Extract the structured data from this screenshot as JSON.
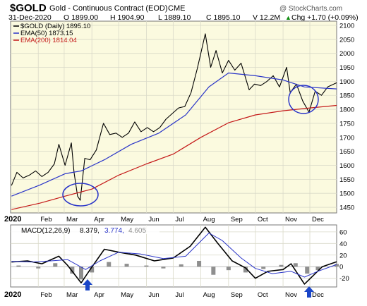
{
  "chart_title": {
    "symbol": "$GOLD",
    "name": "Gold - Continuous Contract (EOD)",
    "exchange": "CME",
    "watermark": "@ StockCharts.com"
  },
  "quote_line": {
    "date": "31-Dec-2020",
    "open": "O 1899.00",
    "high": "H 1904.90",
    "low": "L 1889.10",
    "close": "C 1895.10",
    "volume": "V 12.2M",
    "change": "Chg +1.70 (+0.09%)",
    "change_arrow": "▲"
  },
  "price_legend": {
    "main": "$GOLD (Daily) 1895.10",
    "ema50": "EMA(50) 1873.15",
    "ema200": "EMA(200) 1814.04"
  },
  "macd_legend": {
    "label": "MACD(12,26,9)",
    "macd_value": "8.379,",
    "signal_value": "3.774,",
    "hist_value": "4.605"
  },
  "year_label_top": "2020",
  "year_label_bottom": "2020",
  "colors": {
    "price_bg": "#fbfadf",
    "grid": "#d9d9c8",
    "ema50": "#2a35c8",
    "ema200": "#c41818",
    "macd_line": "#000000",
    "signal_line": "#2a35c8",
    "hist": "#8f8f8f",
    "circle": "#2a35c8",
    "arrow": "#1b46c8"
  },
  "chart_data": [
    {
      "type": "line",
      "title": "$GOLD (Daily)",
      "x_ticks": [
        "Feb",
        "Mar",
        "Apr",
        "May",
        "Jun",
        "Jul",
        "Aug",
        "Sep",
        "Oct",
        "Nov",
        "Dec"
      ],
      "y_ticks": [
        1450,
        1500,
        1550,
        1600,
        1650,
        1700,
        1750,
        1800,
        1850,
        1900,
        1950,
        2000,
        2050,
        2100
      ],
      "ylim": [
        1430,
        2115
      ],
      "grid": true,
      "series": [
        {
          "name": "$GOLD (Daily)",
          "x": [
            "2020-01-02",
            "2020-01-08",
            "2020-01-15",
            "2020-01-22",
            "2020-01-29",
            "2020-02-05",
            "2020-02-12",
            "2020-02-19",
            "2020-02-24",
            "2020-03-02",
            "2020-03-09",
            "2020-03-12",
            "2020-03-16",
            "2020-03-19",
            "2020-03-24",
            "2020-03-30",
            "2020-04-06",
            "2020-04-14",
            "2020-04-21",
            "2020-04-28",
            "2020-05-05",
            "2020-05-12",
            "2020-05-19",
            "2020-05-26",
            "2020-06-02",
            "2020-06-09",
            "2020-06-16",
            "2020-06-23",
            "2020-06-30",
            "2020-07-07",
            "2020-07-14",
            "2020-07-21",
            "2020-07-28",
            "2020-08-06",
            "2020-08-12",
            "2020-08-18",
            "2020-08-25",
            "2020-09-01",
            "2020-09-08",
            "2020-09-15",
            "2020-09-24",
            "2020-09-30",
            "2020-10-07",
            "2020-10-14",
            "2020-10-21",
            "2020-10-28",
            "2020-11-05",
            "2020-11-09",
            "2020-11-16",
            "2020-11-23",
            "2020-11-30",
            "2020-12-07",
            "2020-12-14",
            "2020-12-21",
            "2020-12-31"
          ],
          "values": [
            1528,
            1575,
            1555,
            1565,
            1580,
            1560,
            1575,
            1605,
            1675,
            1600,
            1680,
            1575,
            1490,
            1475,
            1625,
            1620,
            1655,
            1750,
            1710,
            1715,
            1700,
            1715,
            1755,
            1720,
            1735,
            1720,
            1735,
            1765,
            1785,
            1805,
            1810,
            1860,
            1945,
            2070,
            1950,
            2010,
            1930,
            1975,
            1940,
            1965,
            1870,
            1890,
            1885,
            1900,
            1920,
            1880,
            1950,
            1860,
            1890,
            1830,
            1790,
            1865,
            1850,
            1880,
            1895
          ]
        },
        {
          "name": "EMA(50)",
          "x": [
            "2020-01-02",
            "2020-02-03",
            "2020-03-02",
            "2020-03-20",
            "2020-04-15",
            "2020-05-15",
            "2020-06-15",
            "2020-07-15",
            "2020-08-10",
            "2020-09-01",
            "2020-10-01",
            "2020-11-01",
            "2020-11-25",
            "2020-12-31"
          ],
          "values": [
            1490,
            1530,
            1570,
            1580,
            1620,
            1675,
            1715,
            1780,
            1880,
            1930,
            1920,
            1905,
            1880,
            1873
          ]
        },
        {
          "name": "EMA(200)",
          "x": [
            "2020-01-02",
            "2020-02-03",
            "2020-03-02",
            "2020-04-01",
            "2020-05-01",
            "2020-06-01",
            "2020-07-01",
            "2020-08-01",
            "2020-09-01",
            "2020-10-01",
            "2020-11-01",
            "2020-12-01",
            "2020-12-31"
          ],
          "values": [
            1442,
            1465,
            1490,
            1515,
            1565,
            1605,
            1640,
            1700,
            1752,
            1780,
            1795,
            1805,
            1814
          ]
        }
      ]
    },
    {
      "type": "line",
      "title": "MACD(12,26,9)",
      "x_ticks": [
        "Feb",
        "Mar",
        "Apr",
        "May",
        "Jun",
        "Jul",
        "Aug",
        "Sep",
        "Oct",
        "Nov",
        "Dec"
      ],
      "y_ticks": [
        60,
        40,
        20,
        0,
        -20
      ],
      "ylim": [
        -35,
        72
      ],
      "grid": true,
      "series": [
        {
          "name": "MACD",
          "x": [
            "2020-01-02",
            "2020-01-20",
            "2020-02-05",
            "2020-02-24",
            "2020-03-05",
            "2020-03-20",
            "2020-03-30",
            "2020-04-15",
            "2020-05-01",
            "2020-05-20",
            "2020-06-10",
            "2020-07-01",
            "2020-07-20",
            "2020-08-06",
            "2020-08-20",
            "2020-09-05",
            "2020-09-20",
            "2020-10-01",
            "2020-10-15",
            "2020-11-01",
            "2020-11-10",
            "2020-11-25",
            "2020-12-05",
            "2020-12-15",
            "2020-12-31"
          ],
          "values": [
            8,
            10,
            5,
            18,
            2,
            -28,
            -5,
            30,
            25,
            20,
            10,
            15,
            35,
            68,
            40,
            10,
            -2,
            -20,
            -8,
            -5,
            5,
            -30,
            -15,
            0,
            8.379
          ]
        },
        {
          "name": "Signal",
          "x": [
            "2020-01-02",
            "2020-01-25",
            "2020-02-15",
            "2020-03-05",
            "2020-03-25",
            "2020-04-10",
            "2020-05-01",
            "2020-05-25",
            "2020-06-20",
            "2020-07-15",
            "2020-08-10",
            "2020-08-25",
            "2020-09-15",
            "2020-10-01",
            "2020-10-20",
            "2020-11-10",
            "2020-11-25",
            "2020-12-10",
            "2020-12-31"
          ],
          "values": [
            9,
            8,
            10,
            12,
            -5,
            10,
            25,
            22,
            14,
            18,
            58,
            45,
            15,
            -3,
            -12,
            -8,
            -18,
            -8,
            3.774
          ]
        },
        {
          "name": "Histogram",
          "x": [
            "2020-01-10",
            "2020-02-01",
            "2020-02-20",
            "2020-03-10",
            "2020-03-20",
            "2020-04-01",
            "2020-04-20",
            "2020-05-10",
            "2020-06-01",
            "2020-06-20",
            "2020-07-10",
            "2020-07-30",
            "2020-08-15",
            "2020-09-01",
            "2020-09-20",
            "2020-10-10",
            "2020-10-30",
            "2020-11-15",
            "2020-11-28",
            "2020-12-10",
            "2020-12-31"
          ],
          "values": [
            2,
            -3,
            6,
            -12,
            -22,
            -10,
            8,
            5,
            2,
            -3,
            4,
            10,
            -14,
            -6,
            -10,
            -4,
            3,
            6,
            -12,
            -6,
            4.605
          ]
        }
      ]
    }
  ]
}
